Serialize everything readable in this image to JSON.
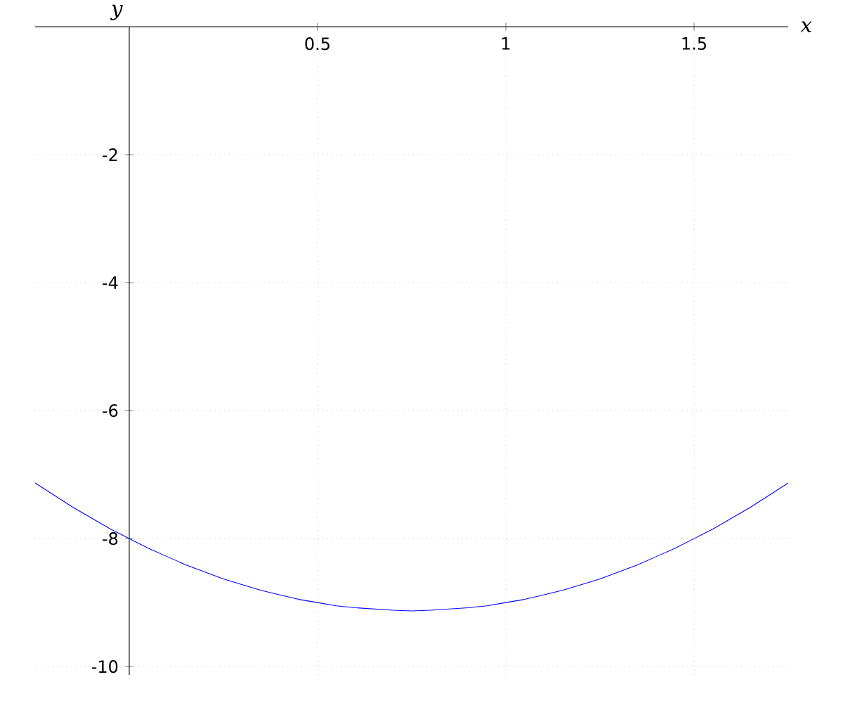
{
  "chart_data": {
    "type": "line",
    "xlabel": "x",
    "ylabel": "y",
    "color": "#0000ff",
    "xlim": [
      -0.25,
      1.75
    ],
    "ylim": [
      -10.13,
      0
    ],
    "xticks": [
      0.5,
      1,
      1.5
    ],
    "yticks": [
      -10,
      -8,
      -6,
      -4,
      -2
    ],
    "grid": true,
    "x": [
      -0.25,
      -0.2,
      -0.15,
      -0.1,
      -0.05,
      0,
      0.05,
      0.1,
      0.15,
      0.2,
      0.25,
      0.3,
      0.35,
      0.4,
      0.45,
      0.5,
      0.55,
      0.6,
      0.65,
      0.7,
      0.75,
      0.8,
      0.85,
      0.9,
      0.95,
      1.0,
      1.05,
      1.1,
      1.15,
      1.2,
      1.25,
      1.3,
      1.35,
      1.4,
      1.45,
      1.5,
      1.55,
      1.6,
      1.65,
      1.7,
      1.75
    ],
    "values": [
      -7.13,
      -7.32,
      -7.51,
      -7.68,
      -7.85,
      -8.0,
      -8.15,
      -8.28,
      -8.41,
      -8.52,
      -8.63,
      -8.72,
      -8.81,
      -8.88,
      -8.95,
      -9.0,
      -9.05,
      -9.08,
      -9.1,
      -9.12,
      -9.13,
      -9.12,
      -9.1,
      -9.08,
      -9.05,
      -9.0,
      -8.95,
      -8.88,
      -8.81,
      -8.72,
      -8.63,
      -8.52,
      -8.41,
      -8.28,
      -8.15,
      -8.0,
      -7.85,
      -7.68,
      -7.51,
      -7.32,
      -7.13
    ]
  }
}
